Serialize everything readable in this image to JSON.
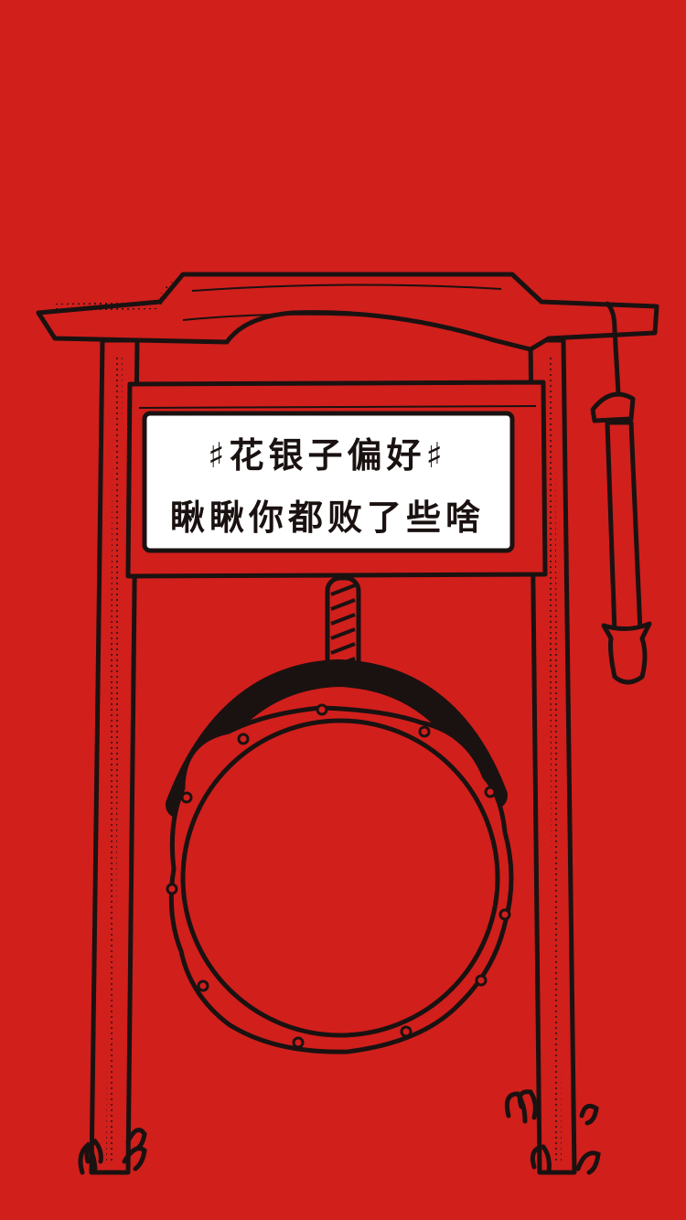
{
  "colors": {
    "background": "#d11f1c",
    "ink": "#1a1211",
    "sign_panel": "#ffffff"
  },
  "sign": {
    "line1": "♯花银子偏好♯",
    "line2": "瞅瞅你都败了些啥"
  },
  "icons": [
    "gong-icon",
    "mallet-icon",
    "rope-icon"
  ]
}
